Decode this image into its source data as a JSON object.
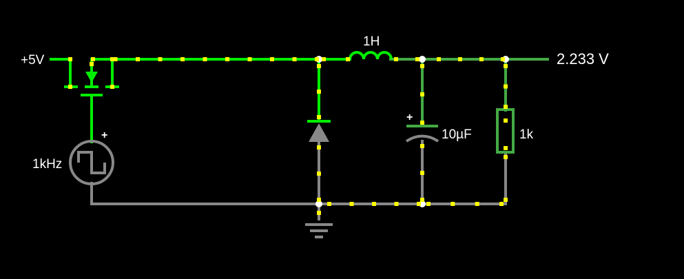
{
  "colors": {
    "background": "#000000",
    "wire_bright": "#00ee00",
    "wire_mid": "#44aa44",
    "wire_ground": "#888888",
    "current_dot": "#ffff00",
    "node": "#ffffff",
    "label": "#ffffff"
  },
  "circuit": {
    "supply_label": "+5V",
    "clock_label": "1kHz",
    "clock_polarity": "+",
    "inductor_label": "1H",
    "capacitor_label": "10µF",
    "capacitor_polarity": "+",
    "resistor_label": "1k",
    "output_voltage": "2.233 V"
  },
  "components": [
    {
      "name": "supply-terminal",
      "kind": "voltage-rail",
      "label": "+5V"
    },
    {
      "name": "pmos-switch",
      "kind": "mosfet"
    },
    {
      "name": "clock-source",
      "kind": "square-wave-source",
      "label": "1kHz"
    },
    {
      "name": "freewheel-diode",
      "kind": "diode"
    },
    {
      "name": "inductor",
      "kind": "inductor",
      "label": "1H"
    },
    {
      "name": "capacitor",
      "kind": "polarized-capacitor",
      "label": "10µF"
    },
    {
      "name": "load-resistor",
      "kind": "resistor",
      "label": "1k"
    },
    {
      "name": "ground",
      "kind": "ground"
    },
    {
      "name": "output-probe",
      "kind": "voltmeter-output",
      "label": "2.233 V"
    }
  ]
}
